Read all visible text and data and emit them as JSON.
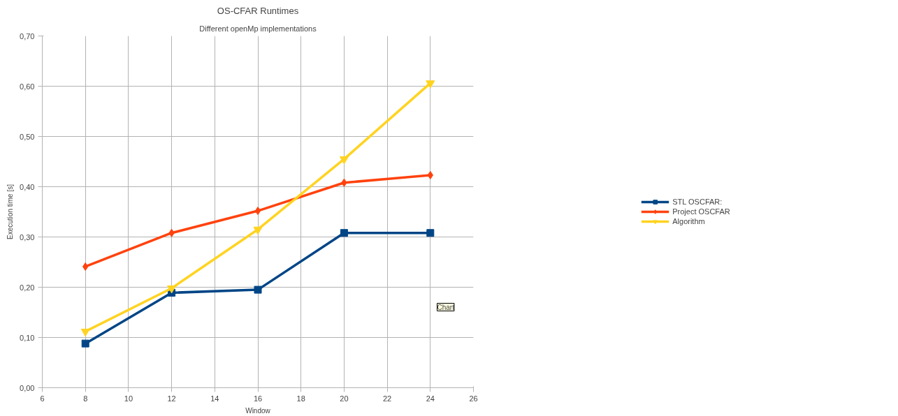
{
  "chart_data": {
    "type": "line",
    "title": "OS-CFAR Runtimes",
    "subtitle": "Different openMp implementations",
    "xlabel": "Window",
    "ylabel": "Execution time [s]",
    "x": [
      8,
      12,
      16,
      20,
      24
    ],
    "series": [
      {
        "name": "STL OSCFAR:",
        "color": "#004586",
        "marker": "square",
        "values": [
          0.088,
          0.189,
          0.195,
          0.308,
          0.308
        ]
      },
      {
        "name": "Project OSCFAR",
        "color": "#ff420e",
        "marker": "diamond",
        "values": [
          0.241,
          0.308,
          0.352,
          0.408,
          0.423
        ]
      },
      {
        "name": "Algorithm",
        "color": "#ffd320",
        "marker": "triangle",
        "values": [
          0.112,
          0.198,
          0.315,
          0.455,
          0.606
        ]
      }
    ],
    "xlim": [
      6,
      26
    ],
    "xticks": [
      6,
      8,
      10,
      12,
      14,
      16,
      18,
      20,
      22,
      24,
      26
    ],
    "ylim": [
      0,
      0.7
    ],
    "yticks": [
      {
        "value": 0,
        "label": "0,00"
      },
      {
        "value": 0.1,
        "label": "0,10"
      },
      {
        "value": 0.2,
        "label": "0,20"
      },
      {
        "value": 0.3,
        "label": "0,30"
      },
      {
        "value": 0.4,
        "label": "0,40"
      },
      {
        "value": 0.5,
        "label": "0,50"
      },
      {
        "value": 0.6,
        "label": "0,60"
      },
      {
        "value": 0.7,
        "label": "0,70"
      }
    ],
    "grid": true,
    "legend": "right",
    "line_style": "solid",
    "annotations": [
      "Chart"
    ]
  }
}
